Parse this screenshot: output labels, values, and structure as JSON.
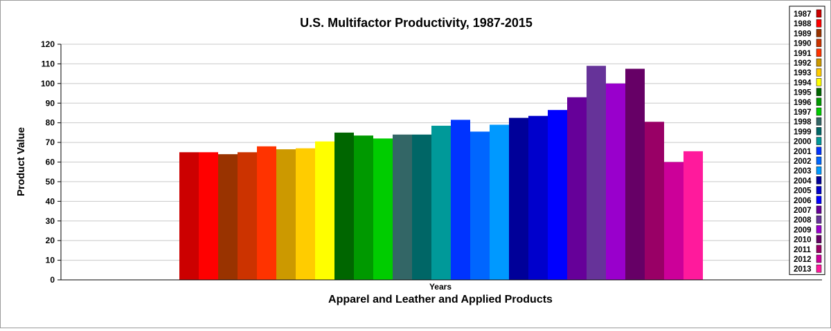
{
  "chart_data": {
    "type": "bar",
    "title": "U.S. Multifactor Productivity, 1987-2015",
    "xlabel": "Apparel and Leather and Applied Products",
    "category_label": "Years",
    "ylabel": "Product Value",
    "ylim": [
      0,
      120
    ],
    "yticks": [
      "0",
      "10",
      "20",
      "30",
      "40",
      "50",
      "60",
      "70",
      "80",
      "90",
      "100",
      "110",
      "120"
    ],
    "grid": true,
    "legend": "right",
    "series": [
      {
        "name": "1987",
        "value": 65,
        "color": "#cc0000"
      },
      {
        "name": "1988",
        "value": 65,
        "color": "#ff0000"
      },
      {
        "name": "1989",
        "value": 64,
        "color": "#993300"
      },
      {
        "name": "1990",
        "value": 65,
        "color": "#cc3300"
      },
      {
        "name": "1991",
        "value": 68,
        "color": "#ff3300"
      },
      {
        "name": "1992",
        "value": 66.5,
        "color": "#cc9900"
      },
      {
        "name": "1993",
        "value": 67,
        "color": "#ffcc00"
      },
      {
        "name": "1994",
        "value": 70.5,
        "color": "#ffff00"
      },
      {
        "name": "1995",
        "value": 75,
        "color": "#006600"
      },
      {
        "name": "1996",
        "value": 73.5,
        "color": "#009900"
      },
      {
        "name": "1997",
        "value": 72,
        "color": "#00cc00"
      },
      {
        "name": "1998",
        "value": 74,
        "color": "#336666"
      },
      {
        "name": "1999",
        "value": 74,
        "color": "#006666"
      },
      {
        "name": "2000",
        "value": 78.5,
        "color": "#009999"
      },
      {
        "name": "2001",
        "value": 81.5,
        "color": "#0033ff"
      },
      {
        "name": "2002",
        "value": 75.5,
        "color": "#0066ff"
      },
      {
        "name": "2003",
        "value": 79,
        "color": "#0099ff"
      },
      {
        "name": "2004",
        "value": 82.5,
        "color": "#000099"
      },
      {
        "name": "2005",
        "value": 83.5,
        "color": "#0000cc"
      },
      {
        "name": "2006",
        "value": 86.5,
        "color": "#0000ff"
      },
      {
        "name": "2007",
        "value": 93,
        "color": "#660099"
      },
      {
        "name": "2008",
        "value": 109,
        "color": "#663399"
      },
      {
        "name": "2009",
        "value": 100,
        "color": "#9900cc"
      },
      {
        "name": "2010",
        "value": 107.5,
        "color": "#660066"
      },
      {
        "name": "2011",
        "value": 80.5,
        "color": "#990066"
      },
      {
        "name": "2012",
        "value": 60,
        "color": "#cc0099"
      },
      {
        "name": "2013",
        "value": 65.5,
        "color": "#ff1a9c"
      }
    ]
  }
}
